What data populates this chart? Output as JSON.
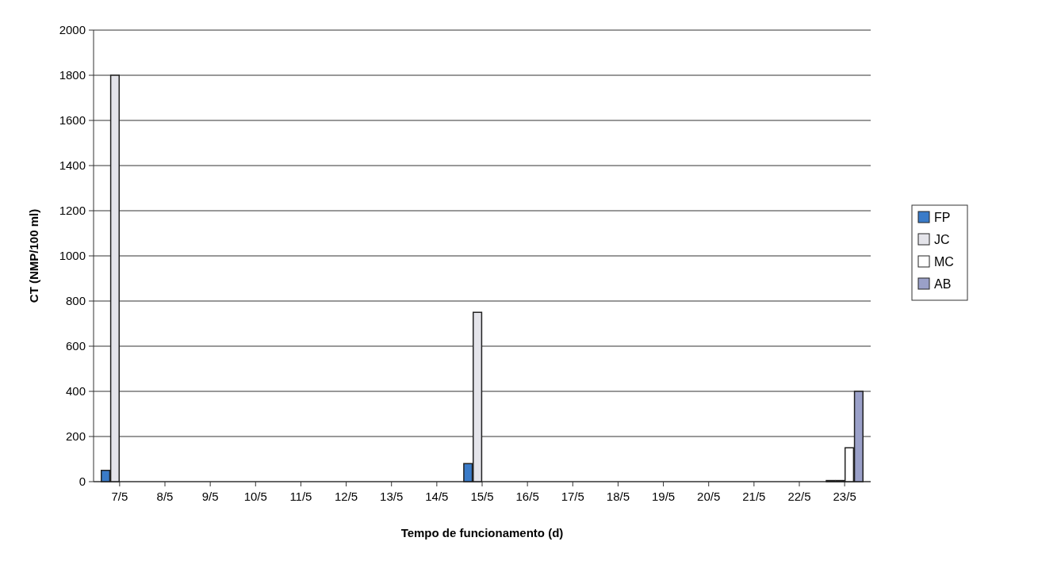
{
  "chart_data": {
    "type": "bar",
    "xlabel": "Tempo de funcionamento (d)",
    "ylabel": "CT (NMP/100 ml)",
    "categories": [
      "7/5",
      "8/5",
      "9/5",
      "10/5",
      "11/5",
      "12/5",
      "13/5",
      "14/5",
      "15/5",
      "16/5",
      "17/5",
      "18/5",
      "19/5",
      "20/5",
      "21/5",
      "22/5",
      "23/5"
    ],
    "series": [
      {
        "name": "FP",
        "color": "#3a7bc8",
        "values": [
          50,
          null,
          null,
          null,
          null,
          null,
          null,
          null,
          80,
          null,
          null,
          null,
          null,
          null,
          null,
          null,
          5
        ]
      },
      {
        "name": "JC",
        "color": "#e4e4ea",
        "values": [
          1800,
          null,
          null,
          null,
          null,
          null,
          null,
          null,
          750,
          null,
          null,
          null,
          null,
          null,
          null,
          null,
          5
        ]
      },
      {
        "name": "MC",
        "color": "#ffffff",
        "values": [
          null,
          null,
          null,
          null,
          null,
          null,
          null,
          null,
          null,
          null,
          null,
          null,
          null,
          null,
          null,
          null,
          150
        ]
      },
      {
        "name": "AB",
        "color": "#9aa0c8",
        "values": [
          null,
          null,
          null,
          null,
          null,
          null,
          null,
          null,
          null,
          null,
          null,
          null,
          null,
          null,
          null,
          null,
          400
        ]
      }
    ],
    "ylim": [
      0,
      2000
    ],
    "yticks": [
      0,
      200,
      400,
      600,
      800,
      1000,
      1200,
      1400,
      1600,
      1800,
      2000
    ],
    "grid": "y",
    "legend": "right"
  }
}
